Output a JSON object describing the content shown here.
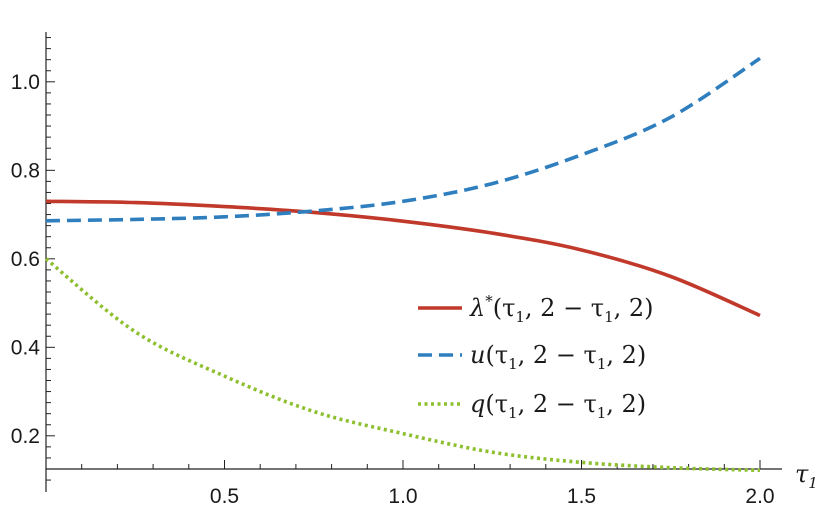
{
  "chart_data": {
    "type": "line",
    "title": "",
    "xlabel": "τ",
    "xlabel_subscript": "1",
    "ylabel": "",
    "xlim": [
      0,
      2.0
    ],
    "ylim": [
      0.1,
      1.1
    ],
    "x_ticks": [
      {
        "value": 0.5,
        "label": "0.5"
      },
      {
        "value": 1.0,
        "label": "1.0"
      },
      {
        "value": 1.5,
        "label": "1.5"
      },
      {
        "value": 2.0,
        "label": "2.0"
      }
    ],
    "y_ticks": [
      {
        "value": 0.2,
        "label": "0.2"
      },
      {
        "value": 0.4,
        "label": "0.4"
      },
      {
        "value": 0.6,
        "label": "0.6"
      },
      {
        "value": 0.8,
        "label": "0.8"
      },
      {
        "value": 1.0,
        "label": "1.0"
      }
    ],
    "grid": false,
    "legend_position": "center-right",
    "series": [
      {
        "name": "λ*(τ1, 2 − τ1, 2)",
        "color": "#c0392b",
        "style": "solid",
        "x": [
          0,
          0.25,
          0.5,
          0.75,
          1.0,
          1.25,
          1.5,
          1.75,
          2.0
        ],
        "y": [
          0.73,
          0.727,
          0.718,
          0.705,
          0.685,
          0.658,
          0.62,
          0.56,
          0.472
        ]
      },
      {
        "name": "u(τ1, 2 − τ1, 2)",
        "color": "#2f7fbf",
        "style": "dashed",
        "x": [
          0,
          0.25,
          0.5,
          0.75,
          1.0,
          1.25,
          1.5,
          1.75,
          2.0
        ],
        "y": [
          0.686,
          0.689,
          0.695,
          0.708,
          0.73,
          0.77,
          0.835,
          0.92,
          1.053
        ]
      },
      {
        "name": "q(τ1, 2 − τ1, 2)",
        "color": "#8dbf2e",
        "style": "dotted",
        "x": [
          0,
          0.25,
          0.5,
          0.75,
          1.0,
          1.25,
          1.5,
          1.75,
          2.0
        ],
        "y": [
          0.6,
          0.435,
          0.335,
          0.255,
          0.205,
          0.163,
          0.14,
          0.128,
          0.122
        ]
      }
    ],
    "legend": [
      {
        "sym": "λ",
        "sup": "*",
        "args": "(τ",
        "sub": "1",
        "rest": ", 2 − τ",
        "sub2": "1",
        "end": ", 2)"
      },
      {
        "sym": "u",
        "sup": "",
        "args": "(τ",
        "sub": "1",
        "rest": ", 2 − τ",
        "sub2": "1",
        "end": ", 2)"
      },
      {
        "sym": "q",
        "sup": "",
        "args": "(τ",
        "sub": "1",
        "rest": ", 2 − τ",
        "sub2": "1",
        "end": ", 2)"
      }
    ]
  }
}
